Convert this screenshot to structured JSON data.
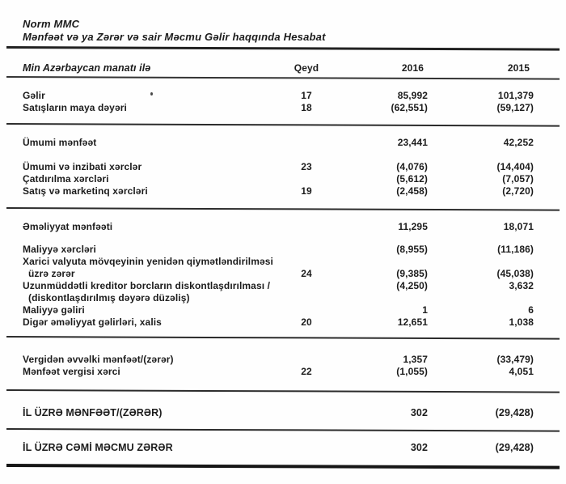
{
  "document": {
    "company": "Norm MMC",
    "statement_title": "Mənfəət və ya Zərər və sair Məcmu Gəlir haqqında Hesabat",
    "table": {
      "unit_label": "Min Azərbaycan manatı ilə",
      "columns": {
        "note": "Qeyd",
        "year1": "2016",
        "year2": "2015"
      },
      "rows": [
        {
          "label": "Gəlir",
          "note": "17",
          "y2016": "85,992",
          "y2015": "101,379"
        },
        {
          "label": "Satışların maya dəyəri",
          "note": "18",
          "y2016": "(62,551)",
          "y2015": "(59,127)"
        },
        {
          "label": "Ümumi mənfəət",
          "y2016": "23,441",
          "y2015": "42,252"
        },
        {
          "label": "Ümumi və inzibati xərclər",
          "note": "23",
          "y2016": "(4,076)",
          "y2015": "(14,404)"
        },
        {
          "label": "Çatdırılma xərcləri",
          "y2016": "(5,612)",
          "y2015": "(7,057)"
        },
        {
          "label": "Satış və marketinq xərcləri",
          "note": "19",
          "y2016": "(2,458)",
          "y2015": "(2,720)"
        },
        {
          "label": "Əməliyyat mənfəəti",
          "y2016": "11,295",
          "y2015": "18,071"
        },
        {
          "label": "Maliyyə xərcləri",
          "y2016": "(8,955)",
          "y2015": "(11,186)"
        },
        {
          "label": "Xarici valyuta mövqeyinin yenidən qiymətləndirilməsi"
        },
        {
          "label": "üzrə zərər",
          "note": "24",
          "y2016": "(9,385)",
          "y2015": "(45,038)"
        },
        {
          "label": "Uzunmüddətli kreditor borcların diskontlaşdırılması /",
          "y2016": "(4,250)",
          "y2015": "3,632"
        },
        {
          "label": "(diskontlaşdırılmış dəyərə düzəliş)"
        },
        {
          "label": "Maliyyə gəliri",
          "y2016": "1",
          "y2015": "6"
        },
        {
          "label": "Digər əməliyyat gəlirləri, xalis",
          "note": "20",
          "y2016": "12,651",
          "y2015": "1,038"
        },
        {
          "label": "Vergidən əvvəlki mənfəət/(zərər)",
          "y2016": "1,357",
          "y2015": "(33,479)"
        },
        {
          "label": "Mənfəət vergisi xərci",
          "note": "22",
          "y2016": "(1,055)",
          "y2015": "4,051"
        },
        {
          "label": "İL ÜZRƏ MƏNFƏƏT/(ZƏRƏR)",
          "y2016": "302",
          "y2015": "(29,428)"
        },
        {
          "label": "İL ÜZRƏ CƏMİ MƏCMU ZƏRƏR",
          "y2016": "302",
          "y2015": "(29,428)"
        }
      ]
    }
  }
}
